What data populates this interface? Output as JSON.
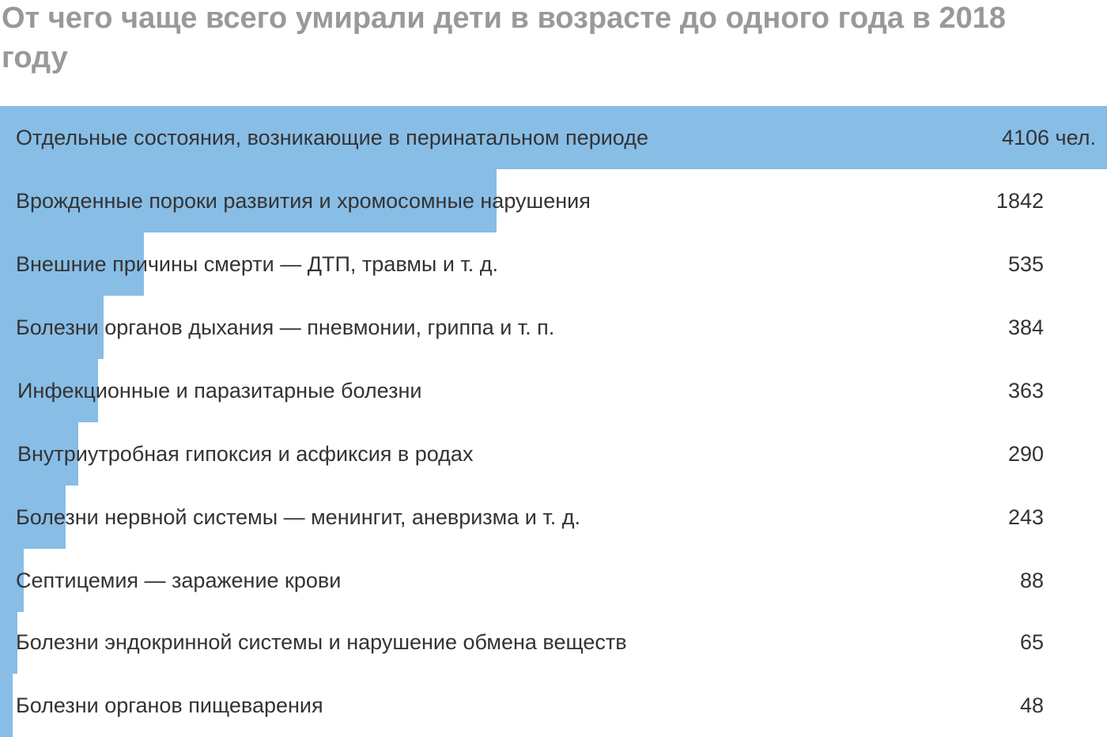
{
  "title": "От чего чаще всего умирали дети в возрасте до одного года в 2018 году",
  "accent_color": "#88bde6",
  "chart_data": {
    "type": "bar",
    "orientation": "horizontal",
    "title": "От чего чаще всего умирали дети в возрасте до одного года в 2018 году",
    "categories": [
      "Отдельные состояния, возникающие в перинатальном периоде",
      "Врожденные пороки развития и хромосомные нарушения",
      "Внешние причины смерти — ДТП, травмы и т. д.",
      "Болезни органов дыхания — пневмонии, гриппа и т. п.",
      "Инфекционные и паразитарные болезни",
      "Внутриутробная гипоксия и асфиксия в родах",
      "Болезни нервной системы — менингит, аневризма и т. д.",
      "Септицемия — заражение крови",
      "Болезни эндокринной системы и нарушение обмена веществ",
      "Болезни органов пищеварения"
    ],
    "values": [
      4106,
      1842,
      535,
      384,
      363,
      290,
      243,
      88,
      65,
      48
    ],
    "value_labels": [
      "4106 чел.",
      "1842",
      "535",
      "384",
      "363",
      "290",
      "243",
      "88",
      "65",
      "48"
    ],
    "xlim": [
      0,
      4106
    ],
    "grid": false,
    "legend": "none"
  }
}
